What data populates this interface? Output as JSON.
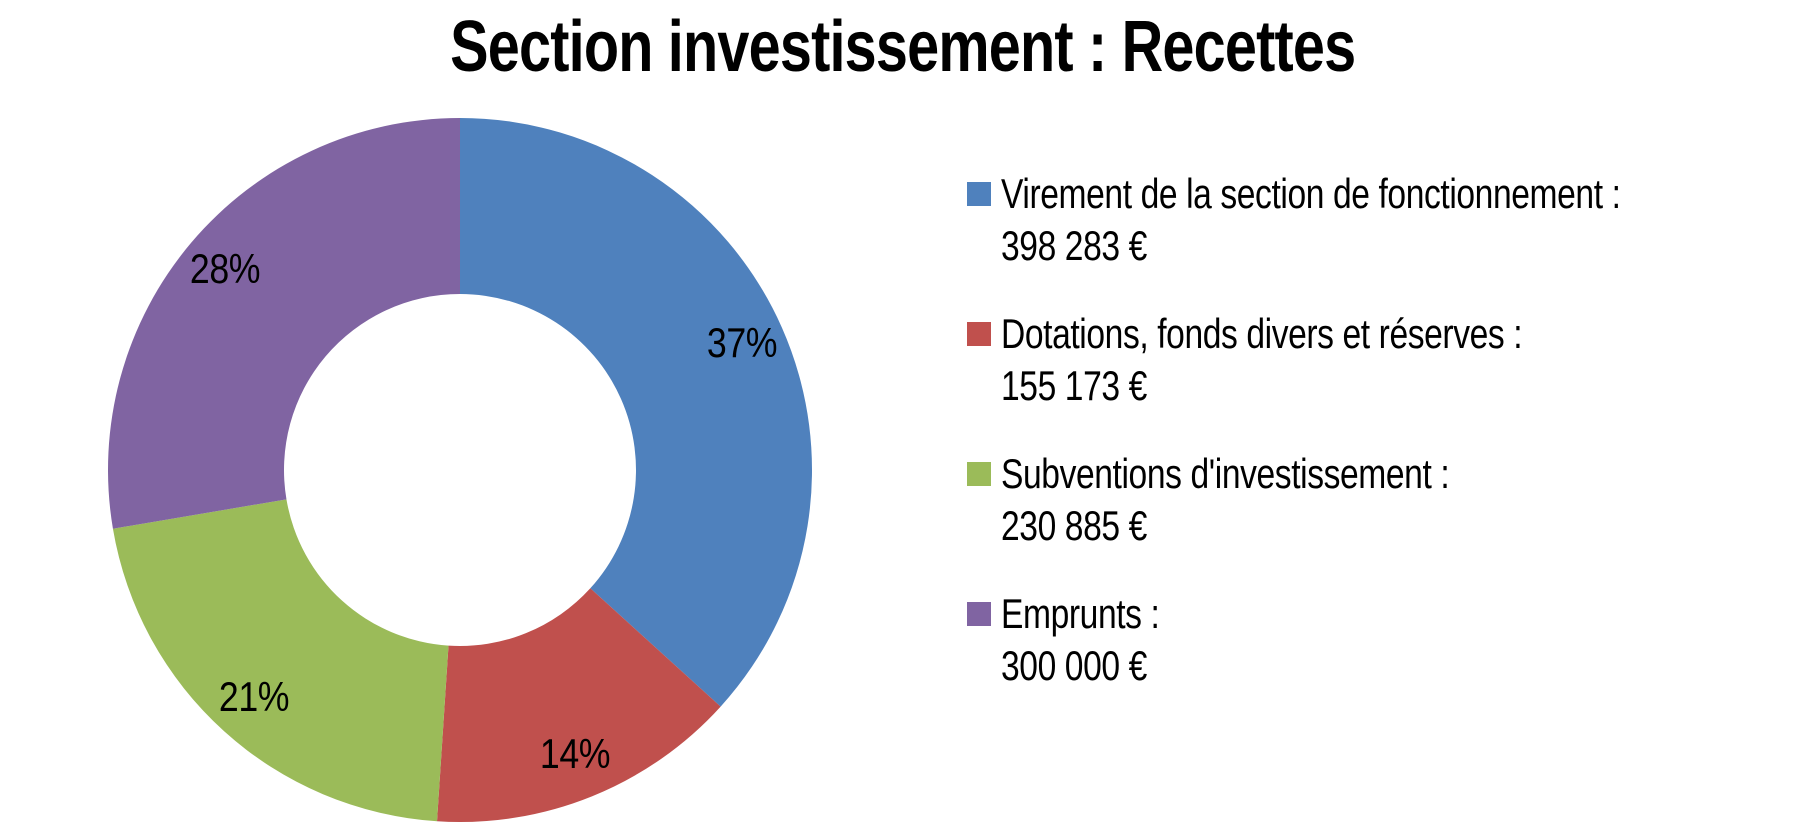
{
  "chart_data": {
    "type": "pie",
    "subtype": "donut",
    "title": "Section investissement : Recettes",
    "hole_ratio": 0.5,
    "start_angle_deg": 0,
    "direction": "clockwise",
    "legend_position": "right",
    "background_color": "#ffffff",
    "title_color": "#000000",
    "label_color": "#000000",
    "slices": [
      {
        "label": "Virement de la section de fonctionnement :",
        "value": 398283,
        "value_display": "398 283 €",
        "percent": 37,
        "percent_label": "37%",
        "color": "#4F81BD"
      },
      {
        "label": "Dotations, fonds divers et réserves :",
        "value": 155173,
        "value_display": "155 173 €",
        "percent": 14,
        "percent_label": "14%",
        "color": "#C0504D"
      },
      {
        "label": "Subventions d'investissement :",
        "value": 230885,
        "value_display": "230 885 €",
        "percent": 21,
        "percent_label": "21%",
        "color": "#9BBB59"
      },
      {
        "label": "Emprunts :",
        "value": 300000,
        "value_display": "300 000 €",
        "percent": 28,
        "percent_label": "28%",
        "color": "#8064A2"
      }
    ]
  }
}
